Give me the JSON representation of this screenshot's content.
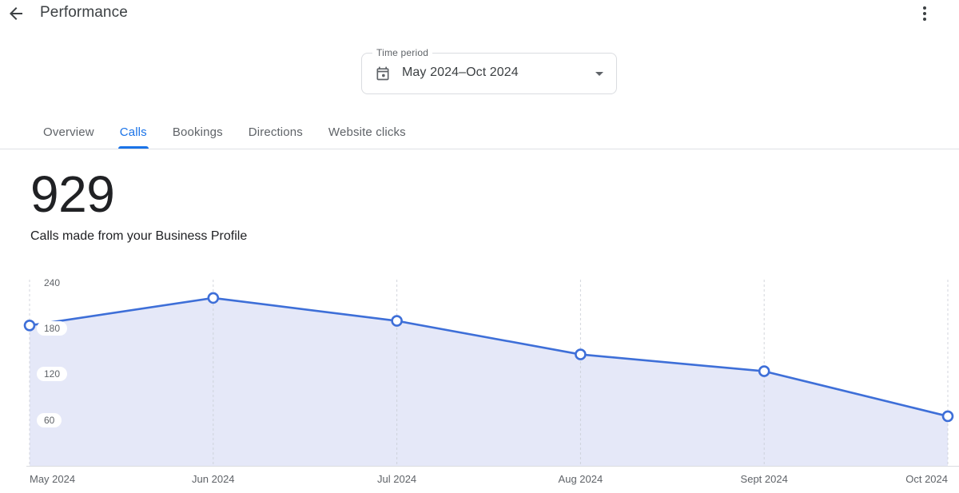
{
  "header": {
    "title": "Performance",
    "back_icon": "arrow-back",
    "menu_icon": "more-vert"
  },
  "time_period": {
    "label": "Time period",
    "value": "May 2024–Oct 2024",
    "icon": "calendar-icon",
    "caret_icon": "dropdown-arrow"
  },
  "tabs": {
    "active_index": 1,
    "items": [
      {
        "label": "Overview"
      },
      {
        "label": "Calls"
      },
      {
        "label": "Bookings"
      },
      {
        "label": "Directions"
      },
      {
        "label": "Website clicks"
      }
    ]
  },
  "metric": {
    "value": "929",
    "description": "Calls made from your Business Profile"
  },
  "chart_data": {
    "type": "area",
    "title": "Calls made from your Business Profile",
    "x": [
      "May 2024",
      "Jun 2024",
      "Jul 2024",
      "Aug 2024",
      "Sept 2024",
      "Oct 2024"
    ],
    "values": [
      184,
      220,
      190,
      146,
      124,
      65
    ],
    "total": 929,
    "y_ticks": [
      60,
      120,
      180,
      240
    ],
    "ylim": [
      0,
      250
    ],
    "xlabel": "",
    "ylabel": "",
    "legend": "none",
    "grid": "vertical-dashed",
    "markers": "open-circle"
  },
  "colors": {
    "accent": "#1a73e8",
    "chart_line": "#3e6fd8",
    "chart_fill": "#e5e8f8",
    "gridline": "#c9cdd4",
    "axis_line": "#dadce0",
    "text_primary": "#202124",
    "text_secondary": "#5f6368",
    "icon_gray": "#3c4043"
  }
}
